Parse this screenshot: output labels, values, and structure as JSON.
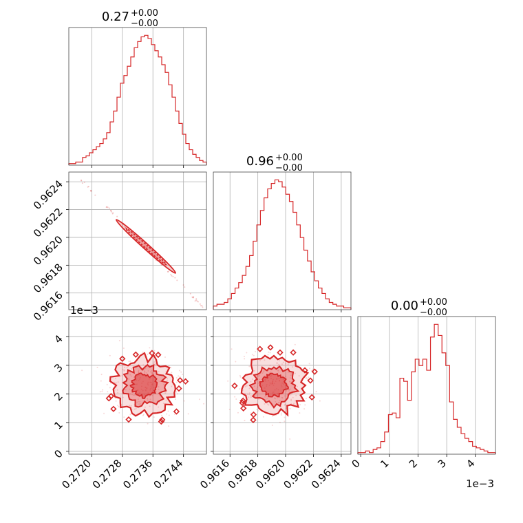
{
  "chart_data": {
    "type": "corner",
    "color": "#d62728",
    "grid": true,
    "panels": [
      {
        "id": "hist-a",
        "type": "histogram",
        "title": {
          "value": "0.27",
          "plus": "+0.00",
          "minus": "−0.00"
        },
        "xlim": [
          0.2714,
          0.275
        ],
        "counts": [
          1,
          1,
          2,
          2,
          5,
          6,
          8,
          10,
          12,
          14,
          17,
          21,
          28,
          35,
          44,
          53,
          58,
          64,
          70,
          76,
          80,
          83,
          84,
          82,
          78,
          74,
          70,
          65,
          60,
          52,
          44,
          35,
          27,
          20,
          14,
          10,
          7,
          5,
          3,
          2
        ],
        "xticks": [
          "0.2720",
          "0.2728",
          "0.2736",
          "0.2744"
        ],
        "xtick_values": [
          0.272,
          0.2728,
          0.2736,
          0.2744
        ]
      },
      {
        "id": "scatter-ab",
        "type": "scatter",
        "xlim": [
          0.2714,
          0.275
        ],
        "ylim": [
          0.96148,
          0.96247
        ],
        "yticks": [
          "0.9616",
          "0.9618",
          "0.9620",
          "0.9622",
          "0.9624"
        ],
        "ytick_values": [
          0.9616,
          0.9618,
          0.962,
          0.9622,
          0.9624
        ],
        "relation": "linear anti-correlated"
      },
      {
        "id": "hist-b",
        "type": "histogram",
        "title": {
          "value": "0.96",
          "plus": "+0.00",
          "minus": "−0.00"
        },
        "xlim": [
          0.96148,
          0.96247
        ],
        "counts": [
          2,
          3,
          3,
          4,
          6,
          9,
          12,
          15,
          19,
          24,
          30,
          38,
          47,
          55,
          62,
          67,
          70,
          72,
          71,
          68,
          64,
          60,
          54,
          47,
          40,
          33,
          27,
          21,
          16,
          12,
          9,
          6,
          4,
          3,
          2,
          2,
          1,
          1
        ],
        "xticks": [
          "0.9616",
          "0.9618",
          "0.9620",
          "0.9622",
          "0.9624"
        ],
        "xtick_values": [
          0.9616,
          0.9618,
          0.962,
          0.9622,
          0.9624
        ]
      },
      {
        "id": "scatter-ac",
        "type": "scatter",
        "xlim": [
          0.2714,
          0.275
        ],
        "ylim": [
          -0.1,
          4.7
        ],
        "yticks": [
          "0",
          "1",
          "2",
          "3",
          "4"
        ],
        "ytick_values": [
          0,
          1,
          2,
          3,
          4
        ],
        "offset": "1e−3"
      },
      {
        "id": "scatter-bc",
        "type": "scatter",
        "xlim": [
          0.96148,
          0.96247
        ],
        "ylim": [
          -0.1,
          4.7
        ]
      },
      {
        "id": "hist-c",
        "type": "histogram",
        "title": {
          "value": "0.00",
          "plus": "+0.00",
          "minus": "−0.00"
        },
        "xlim": [
          -0.1,
          4.7
        ],
        "counts": [
          1,
          1,
          2,
          1,
          3,
          4,
          8,
          14,
          25,
          26,
          23,
          48,
          46,
          34,
          52,
          60,
          56,
          60,
          53,
          74,
          82,
          75,
          64,
          56,
          33,
          22,
          17,
          13,
          10,
          8,
          5,
          4,
          3,
          2,
          1,
          1
        ],
        "xticks": [
          "0",
          "1",
          "2",
          "3",
          "4"
        ],
        "xtick_values": [
          0,
          1,
          2,
          3,
          4
        ],
        "offset": "1e−3"
      }
    ]
  }
}
